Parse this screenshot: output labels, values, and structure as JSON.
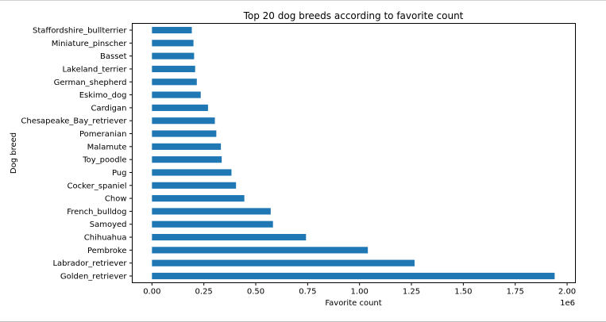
{
  "chart_data": {
    "type": "bar",
    "orientation": "horizontal",
    "title": "Top 20 dog breeds according to favorite count",
    "xlabel": "Favorite count",
    "ylabel": "Dog breed",
    "x_offset_label": "1e6",
    "x_tick_labels": [
      "0.00",
      "0.25",
      "0.50",
      "0.75",
      "1.00",
      "1.25",
      "1.50",
      "1.75",
      "2.00"
    ],
    "x_ticks": [
      0,
      250000,
      500000,
      750000,
      1000000,
      1250000,
      1500000,
      1750000,
      2000000
    ],
    "xlim": [
      -95000,
      2040000
    ],
    "grid": false,
    "bar_color": "#1f77b4",
    "categories": [
      "Golden_retriever",
      "Labrador_retriever",
      "Pembroke",
      "Chihuahua",
      "Samoyed",
      "French_bulldog",
      "Chow",
      "Cocker_spaniel",
      "Pug",
      "Toy_poodle",
      "Malamute",
      "Pomeranian",
      "Chesapeake_Bay_retriever",
      "Cardigan",
      "Eskimo_dog",
      "German_shepherd",
      "Lakeland_terrier",
      "Basset",
      "Miniature_pinscher",
      "Staffordshire_bullterrier"
    ],
    "values": [
      1940000,
      1265000,
      1040000,
      742000,
      583000,
      572000,
      445000,
      405000,
      383000,
      336000,
      332000,
      310000,
      303000,
      270000,
      235000,
      216000,
      208000,
      203000,
      200000,
      192000
    ]
  }
}
